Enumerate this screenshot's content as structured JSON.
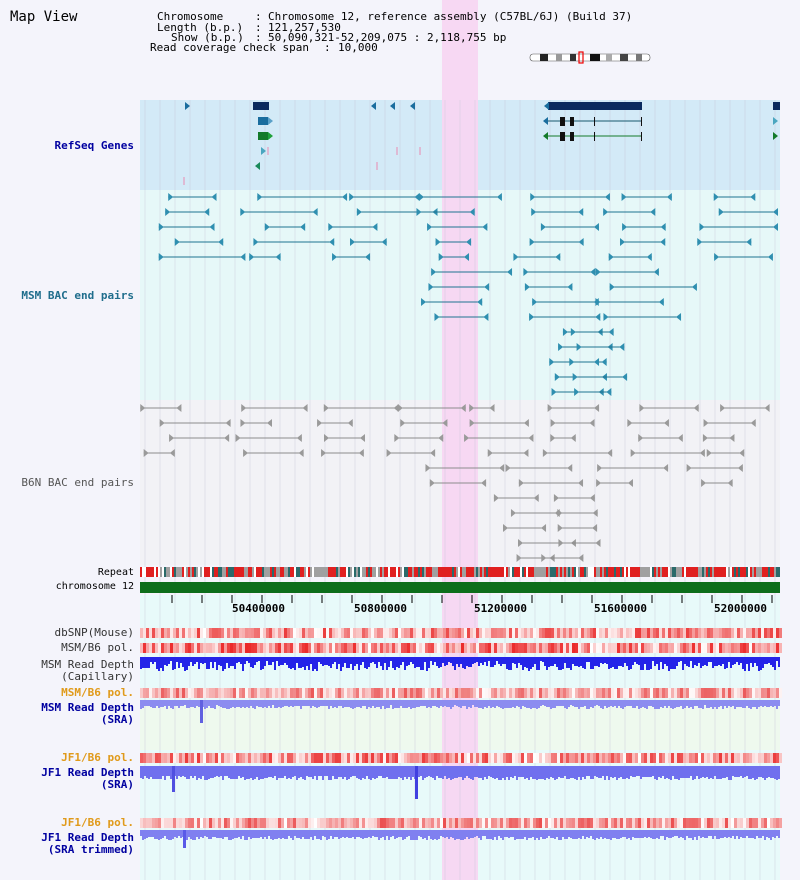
{
  "page": {
    "title": "Map View"
  },
  "header": {
    "chromosome_key": "Chromosome",
    "chromosome_value": "Chromosome 12, reference assembly (C57BL/6J) (Build 37)",
    "length_key": "Length (b.p.)",
    "length_value": "121,257,530",
    "show_key": "Show (b.p.)",
    "show_value": "50,090,321-52,209,075 : 2,118,755 bp",
    "span_key": "Read coverage check span",
    "span_value": "10,000"
  },
  "tracks": {
    "refseq": "RefSeq Genes",
    "msm_bac": "MSM BAC end pairs",
    "b6n_bac": "B6N BAC end pairs",
    "repeat": "Repeat",
    "chromosome": "chromosome 12",
    "dbsnp": "dbSNP(Mouse)",
    "msm_b6_pol": "MSM/B6 pol.",
    "msm_depth_cap_1": "MSM Read Depth",
    "msm_depth_cap_2": "(Capillary)",
    "msm_b6_pol_sra": "MSM/B6 pol.",
    "msm_depth_sra_1": "MSM Read Depth",
    "msm_depth_sra_2": "(SRA)",
    "jf1_b6_pol": "JF1/B6 pol.",
    "jf1_depth_1": "JF1 Read Depth",
    "jf1_depth_2": "(SRA)",
    "jf1_b6_pol_trim": "JF1/B6 pol.",
    "jf1_trim_1": "JF1 Read Depth",
    "jf1_trim_2": "(SRA trimmed)"
  },
  "axis": {
    "ticks": [
      "50400000",
      "50800000",
      "51200000",
      "51600000",
      "52000000"
    ]
  },
  "colors": {
    "refseq_bg": "#d3eaf7",
    "msm_bg": "#e6f8f8",
    "highlight": "#f7d6f2",
    "gene_dark": "#0b2a5e",
    "msm_pair": "#1f7391",
    "b6n_pair": "#8c8c8c",
    "chrom_bar": "#0d6e1b",
    "depth_blue": "#2a2ae6",
    "label_blue": "#0000a0",
    "label_teal": "#1f6d8c",
    "label_orange": "#e09a1a"
  }
}
